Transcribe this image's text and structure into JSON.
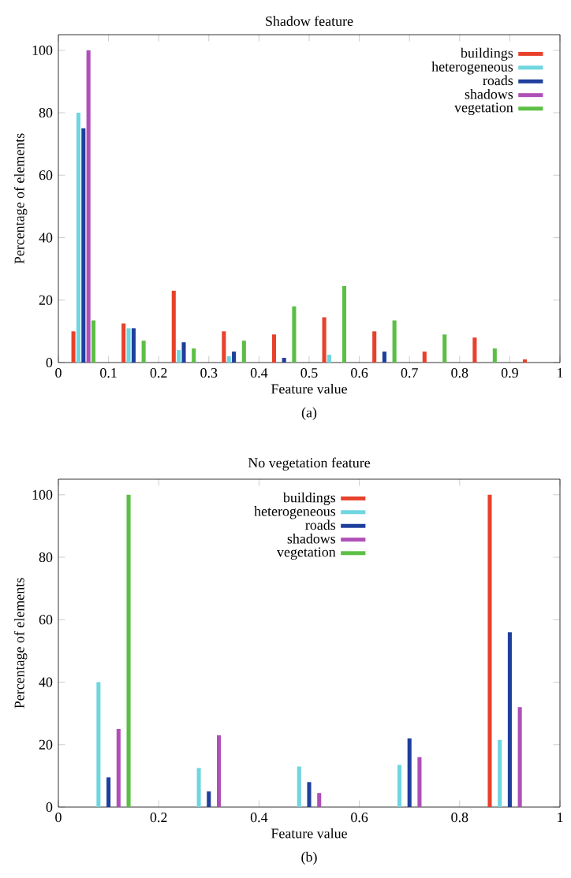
{
  "chart_data": [
    {
      "type": "bar",
      "title": "Shadow feature",
      "xlabel": "Feature value",
      "ylabel": "Percentage of elements",
      "annotations": [
        "(a)"
      ],
      "xlim": [
        0,
        1
      ],
      "xticks": [
        0,
        0.1,
        0.2,
        0.3,
        0.4,
        0.5,
        0.6,
        0.7,
        0.8,
        0.9,
        1
      ],
      "ylim": [
        0,
        105
      ],
      "yticks": [
        0,
        20,
        40,
        60,
        80,
        100
      ],
      "legend": "top right",
      "grid": false,
      "series": [
        {
          "name": "buildings",
          "color": "#e8412b",
          "x": [
            0.03,
            0.13,
            0.23,
            0.33,
            0.43,
            0.53,
            0.63,
            0.73,
            0.83,
            0.93
          ],
          "values": [
            10,
            12.5,
            23,
            10,
            9,
            14.5,
            10,
            3.5,
            8,
            1
          ]
        },
        {
          "name": "heterogeneous",
          "color": "#6fd6e0",
          "x": [
            0.04,
            0.14,
            0.24,
            0.34,
            0.54
          ],
          "values": [
            80,
            11,
            4,
            2,
            2.5
          ]
        },
        {
          "name": "roads",
          "color": "#1f3f9c",
          "x": [
            0.05,
            0.15,
            0.25,
            0.35,
            0.45,
            0.65
          ],
          "values": [
            75,
            11,
            6.5,
            3.5,
            1.5,
            3.5
          ]
        },
        {
          "name": "shadows",
          "color": "#b04fb8",
          "x": [
            0.06
          ],
          "values": [
            100
          ]
        },
        {
          "name": "vegetation",
          "color": "#5cbf45",
          "x": [
            0.07,
            0.17,
            0.27,
            0.37,
            0.47,
            0.57,
            0.67,
            0.77,
            0.87
          ],
          "values": [
            13.5,
            7,
            4.5,
            7,
            18,
            24.5,
            13.5,
            9,
            4.5
          ]
        }
      ]
    },
    {
      "type": "bar",
      "title": "No vegetation feature",
      "xlabel": "Feature value",
      "ylabel": "Percentage of elements",
      "annotations": [
        "(b)"
      ],
      "xlim": [
        0,
        1
      ],
      "xticks": [
        0,
        0.2,
        0.4,
        0.6,
        0.8,
        1
      ],
      "ylim": [
        0,
        105
      ],
      "yticks": [
        0,
        20,
        40,
        60,
        80,
        100
      ],
      "legend": "top",
      "grid": false,
      "series": [
        {
          "name": "buildings",
          "color": "#e8412b",
          "x": [
            0.86
          ],
          "values": [
            100
          ]
        },
        {
          "name": "heterogeneous",
          "color": "#6fd6e0",
          "x": [
            0.08,
            0.28,
            0.48,
            0.68,
            0.88
          ],
          "values": [
            40,
            12.5,
            13,
            13.5,
            21.5
          ]
        },
        {
          "name": "roads",
          "color": "#1f3f9c",
          "x": [
            0.1,
            0.3,
            0.5,
            0.7,
            0.9
          ],
          "values": [
            9.5,
            5,
            8,
            22,
            56
          ]
        },
        {
          "name": "shadows",
          "color": "#b04fb8",
          "x": [
            0.12,
            0.32,
            0.52,
            0.72,
            0.92
          ],
          "values": [
            25,
            23,
            4.5,
            16,
            32
          ]
        },
        {
          "name": "vegetation",
          "color": "#5cbf45",
          "x": [
            0.14
          ],
          "values": [
            100
          ]
        }
      ]
    }
  ]
}
